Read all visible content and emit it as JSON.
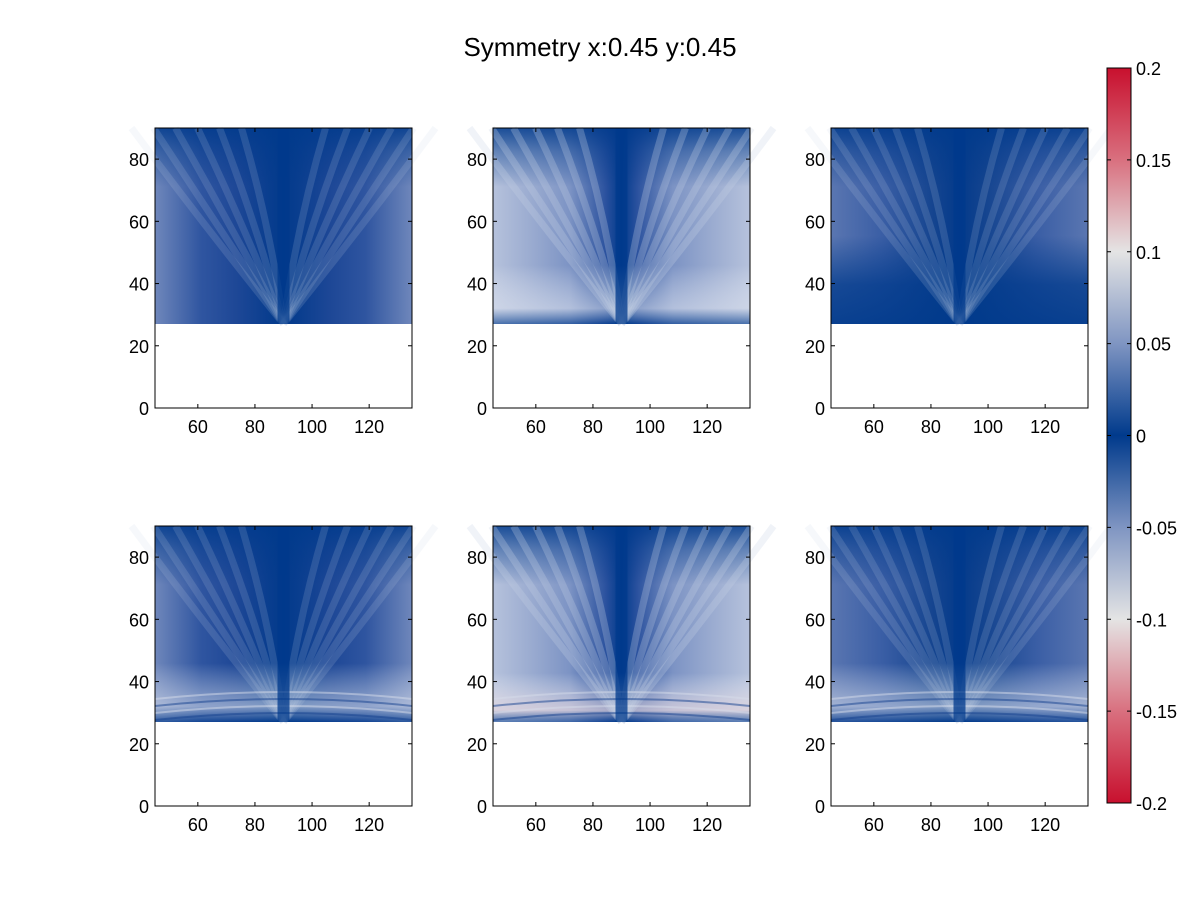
{
  "chart_data": {
    "type": "heatmap",
    "title": "Symmetry x:0.45 y:0.45",
    "xlim": [
      45,
      135
    ],
    "ylim": [
      0,
      90
    ],
    "xticks": [
      60,
      80,
      100,
      120
    ],
    "yticks": [
      0,
      20,
      40,
      60,
      80
    ],
    "data_ylim": [
      27,
      90
    ],
    "colormap": [
      "#c8102e",
      "#d9a6b0",
      "#e8e8e8",
      "#7f95c2",
      "#003a8c",
      "#7f95c2",
      "#e8e8e8",
      "#d9a6b0",
      "#c8102e"
    ],
    "colorbar": {
      "range": [
        -0.2,
        0.2
      ],
      "ticks": [
        "0.2",
        "0.15",
        "0.1",
        "0.05",
        "0",
        "-0.05",
        "-0.1",
        "-0.15",
        "-0.2"
      ],
      "tick_values": [
        0.2,
        0.15,
        0.1,
        0.05,
        0,
        -0.05,
        -0.1,
        -0.15,
        -0.2
      ]
    },
    "panels": [
      {
        "name": "panel-1",
        "typical_value": 0.035
      },
      {
        "name": "panel-2",
        "typical_value": 0.06
      },
      {
        "name": "panel-3",
        "typical_value": 0.03
      },
      {
        "name": "panel-4",
        "typical_value": 0.04
      },
      {
        "name": "panel-5",
        "typical_value": 0.06
      },
      {
        "name": "panel-6",
        "typical_value": 0.045
      }
    ]
  }
}
